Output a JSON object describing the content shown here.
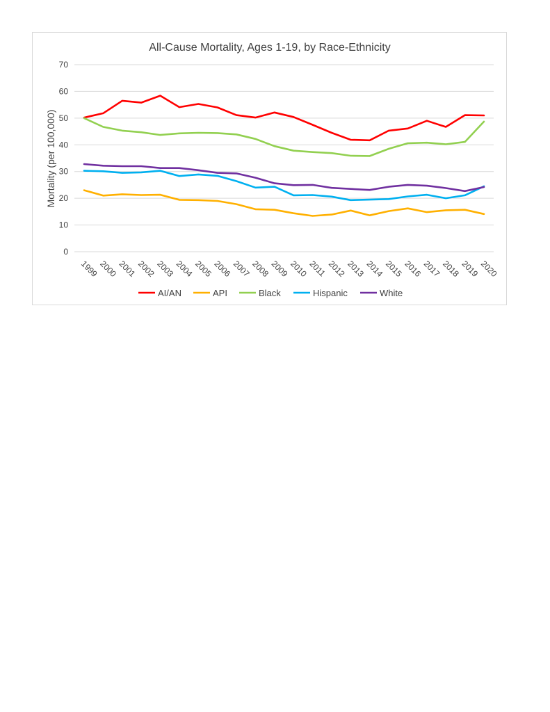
{
  "chart_data": {
    "type": "line",
    "title": "All-Cause Mortality, Ages 1-19, by Race-Ethnicity",
    "xlabel": "",
    "ylabel": "Mortality (per 100,000)",
    "ylim": [
      0,
      70
    ],
    "yticks": [
      "0",
      "10",
      "20",
      "30",
      "40",
      "50",
      "60",
      "70"
    ],
    "grid": true,
    "legend_position": "bottom",
    "categories": [
      "1999",
      "2000",
      "2001",
      "2002",
      "2003",
      "2004",
      "2005",
      "2006",
      "2007",
      "2008",
      "2009",
      "2010",
      "2011",
      "2012",
      "2013",
      "2014",
      "2015",
      "2016",
      "2017",
      "2018",
      "2019",
      "2020"
    ],
    "series": [
      {
        "name": "AI/AN",
        "color": "#ff0000",
        "values": [
          50.2,
          51.8,
          56.5,
          55.8,
          58.4,
          54.1,
          55.3,
          54.0,
          51.1,
          50.2,
          52.1,
          50.4,
          47.5,
          44.5,
          41.9,
          41.7,
          45.3,
          46.1,
          49.0,
          46.7,
          51.1,
          51.0
        ]
      },
      {
        "name": "API",
        "color": "#ffb000",
        "values": [
          23.0,
          21.0,
          21.5,
          21.2,
          21.3,
          19.4,
          19.3,
          19.0,
          17.8,
          15.9,
          15.7,
          14.4,
          13.4,
          13.9,
          15.4,
          13.6,
          15.2,
          16.2,
          14.8,
          15.5,
          15.7,
          14.1
        ]
      },
      {
        "name": "Black",
        "color": "#92d050",
        "values": [
          50.0,
          46.7,
          45.3,
          44.7,
          43.7,
          44.3,
          44.5,
          44.4,
          43.9,
          42.2,
          39.5,
          37.8,
          37.3,
          36.9,
          35.9,
          35.8,
          38.5,
          40.6,
          40.8,
          40.2,
          41.1,
          48.7
        ]
      },
      {
        "name": "Hispanic",
        "color": "#00b0f0",
        "values": [
          30.3,
          30.1,
          29.5,
          29.7,
          30.3,
          28.3,
          28.9,
          28.4,
          26.4,
          24.0,
          24.3,
          21.1,
          21.2,
          20.6,
          19.3,
          19.5,
          19.7,
          20.7,
          21.3,
          20.0,
          21.1,
          24.5
        ]
      },
      {
        "name": "White",
        "color": "#7030a0",
        "values": [
          32.8,
          32.2,
          32.0,
          32.0,
          31.3,
          31.3,
          30.5,
          29.5,
          29.3,
          27.7,
          25.6,
          24.9,
          25.0,
          23.9,
          23.5,
          23.1,
          24.3,
          25.0,
          24.7,
          23.8,
          22.7,
          24.2
        ]
      }
    ]
  }
}
